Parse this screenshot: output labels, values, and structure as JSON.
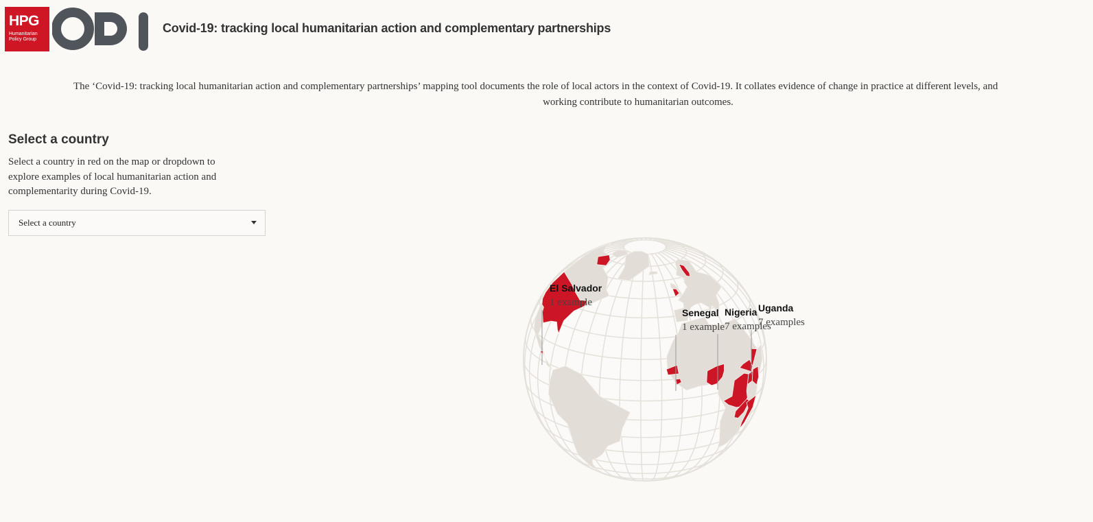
{
  "header": {
    "logo_text": "HPG",
    "logo_subtext": "Humanitarian Policy Group",
    "title": "Covid-19: tracking local humanitarian action and complementary partnerships"
  },
  "intro": {
    "line1": "The ‘Covid-19: tracking local humanitarian action and complementary partnerships’ mapping tool documents the role of local actors in the context of Covid-19. It collates evidence of change in practice at different levels, and",
    "line2": "working contribute to humanitarian outcomes."
  },
  "sidebar": {
    "heading": "Select a country",
    "description": "Select a country in red on the map or dropdown to explore examples of local humanitarian action and complementarity during Covid-19.",
    "dropdown": "Select a country"
  },
  "map": {
    "labels": [
      {
        "country": "El Salvador",
        "count": "1 example"
      },
      {
        "country": "Senegal",
        "count": "1 example"
      },
      {
        "country": "Nigeria",
        "count": "7 examples"
      },
      {
        "country": "Uganda",
        "count": "7 examples"
      }
    ]
  }
}
